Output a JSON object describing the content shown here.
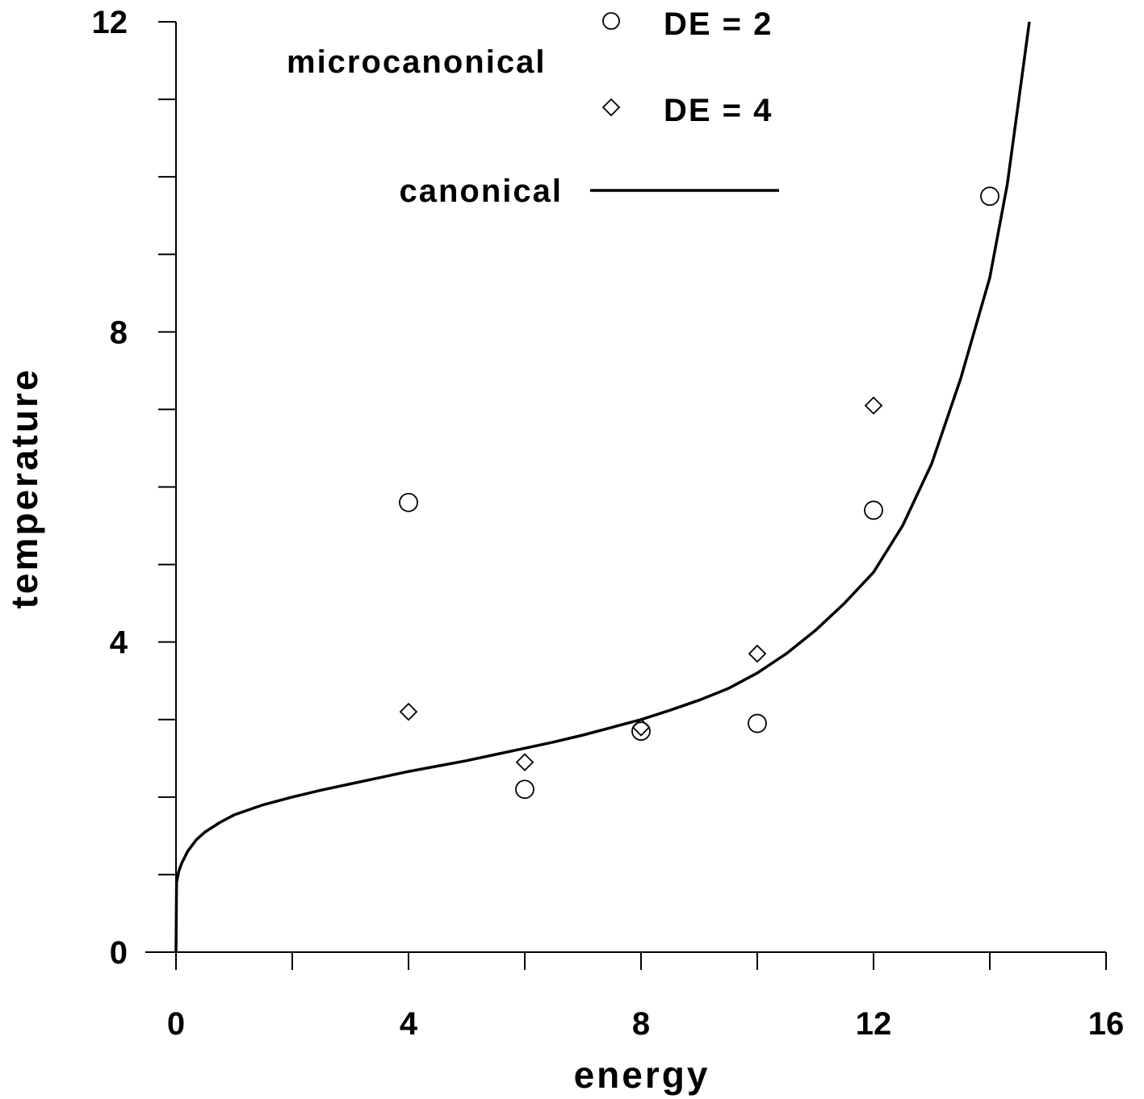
{
  "chart_data": {
    "type": "scatter",
    "xlabel": "energy",
    "ylabel": "temperature",
    "xlim": [
      0,
      16
    ],
    "ylim": [
      0,
      12
    ],
    "x_ticks": [
      0,
      4,
      8,
      12,
      16
    ],
    "y_ticks": [
      0,
      4,
      8,
      12
    ],
    "x_minor_step": 2,
    "y_minor_step": 1,
    "grid": false,
    "legend": {
      "group_label": "microcanonical",
      "placement": "top-center"
    },
    "series": [
      {
        "name": "DE = 2",
        "marker": "circle",
        "points": [
          [
            4,
            5.8
          ],
          [
            6,
            2.1
          ],
          [
            8,
            2.85
          ],
          [
            10,
            2.95
          ],
          [
            12,
            5.7
          ],
          [
            14,
            9.75
          ]
        ]
      },
      {
        "name": "DE = 4",
        "marker": "diamond",
        "points": [
          [
            4,
            3.1
          ],
          [
            6,
            2.45
          ],
          [
            8,
            2.9
          ],
          [
            10,
            3.85
          ],
          [
            12,
            7.05
          ]
        ]
      },
      {
        "name": "canonical",
        "marker": "line",
        "points": [
          [
            0,
            0
          ],
          [
            0.01,
            0.9
          ],
          [
            0.05,
            1.05
          ],
          [
            0.1,
            1.15
          ],
          [
            0.2,
            1.3
          ],
          [
            0.35,
            1.45
          ],
          [
            0.5,
            1.55
          ],
          [
            0.75,
            1.67
          ],
          [
            1,
            1.77
          ],
          [
            1.5,
            1.9
          ],
          [
            2,
            2.0
          ],
          [
            2.5,
            2.09
          ],
          [
            3,
            2.17
          ],
          [
            3.5,
            2.25
          ],
          [
            4,
            2.33
          ],
          [
            4.5,
            2.4
          ],
          [
            5,
            2.47
          ],
          [
            5.5,
            2.55
          ],
          [
            6,
            2.63
          ],
          [
            6.5,
            2.71
          ],
          [
            7,
            2.8
          ],
          [
            7.5,
            2.9
          ],
          [
            8,
            3.0
          ],
          [
            8.5,
            3.12
          ],
          [
            9,
            3.25
          ],
          [
            9.5,
            3.4
          ],
          [
            10,
            3.6
          ],
          [
            10.5,
            3.85
          ],
          [
            11,
            4.15
          ],
          [
            11.5,
            4.5
          ],
          [
            12,
            4.9
          ],
          [
            12.5,
            5.5
          ],
          [
            13,
            6.3
          ],
          [
            13.5,
            7.4
          ],
          [
            14,
            8.7
          ],
          [
            14.3,
            9.9
          ],
          [
            14.5,
            11.0
          ],
          [
            14.68,
            12.0
          ]
        ]
      }
    ],
    "colors": {
      "marker": "#000000",
      "line": "#000000",
      "background": "#ffffff"
    }
  }
}
